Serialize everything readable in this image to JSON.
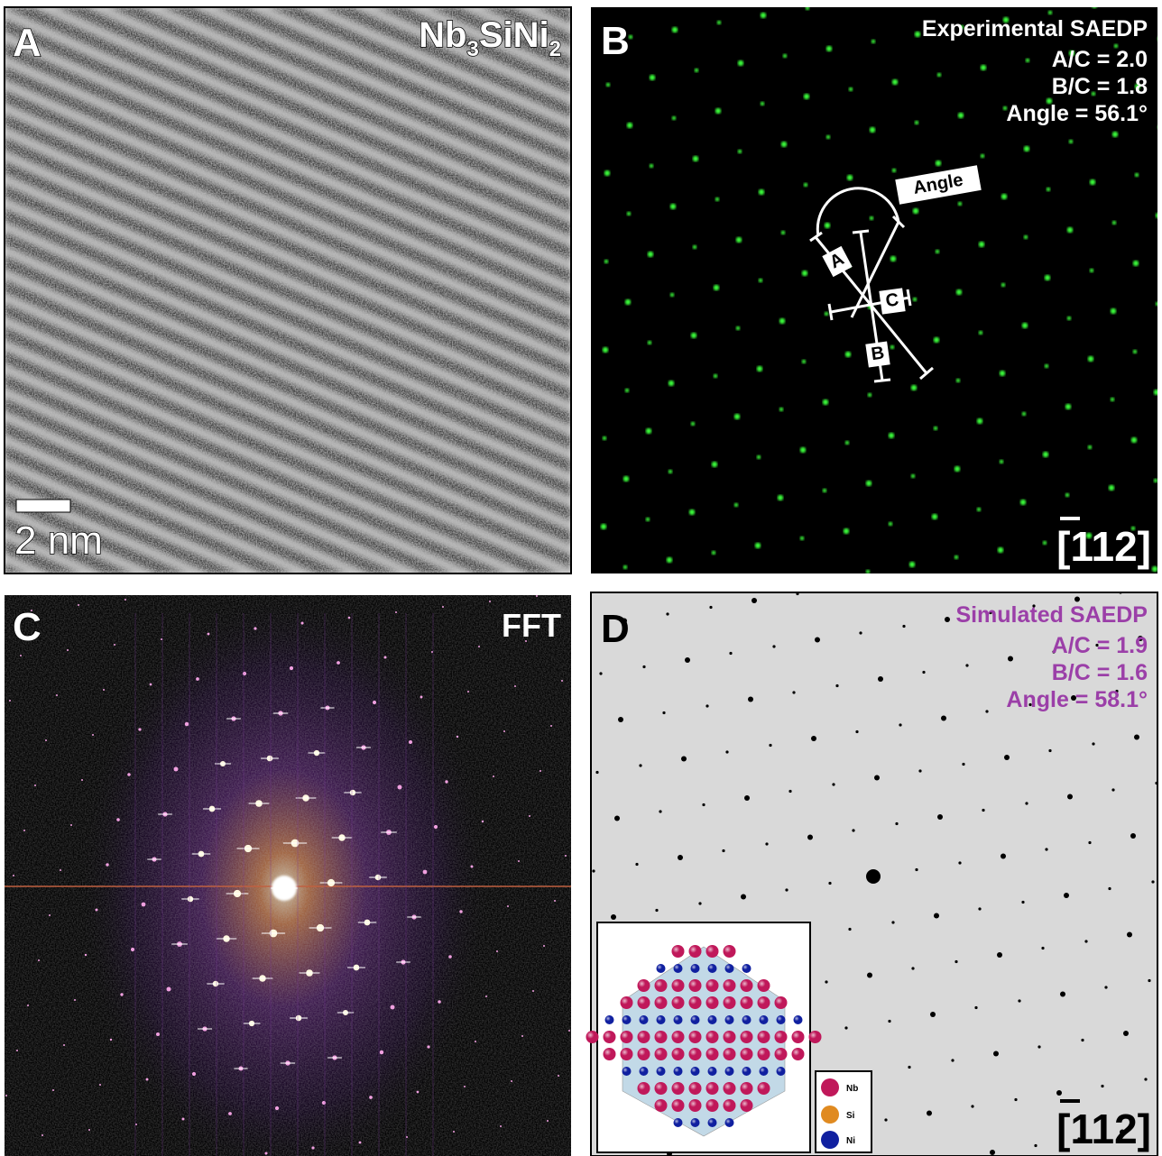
{
  "panels": [
    {
      "label": "A",
      "formula": [
        "Nb",
        "3",
        "Si",
        "Ni",
        "2"
      ],
      "scale_bar": "2 nm"
    },
    {
      "label": "B",
      "title": "Experimental SAEDP",
      "lines": [
        "A/C = 2.0",
        "B/C = 1.8",
        "Angle = 56.1°"
      ],
      "annotations": [
        "Angle",
        "A",
        "B",
        "C"
      ],
      "zone_axis": [
        "[",
        "1",
        "12]"
      ]
    },
    {
      "label": "C",
      "title": "FFT"
    },
    {
      "label": "D",
      "title": "Simulated SAEDP",
      "lines": [
        "A/C = 1.9",
        "B/C = 1.6",
        "Angle = 58.1°"
      ],
      "zone_axis": [
        "[",
        "1",
        "12]"
      ],
      "legend": [
        "Nb",
        "Si",
        "Ni"
      ]
    }
  ]
}
